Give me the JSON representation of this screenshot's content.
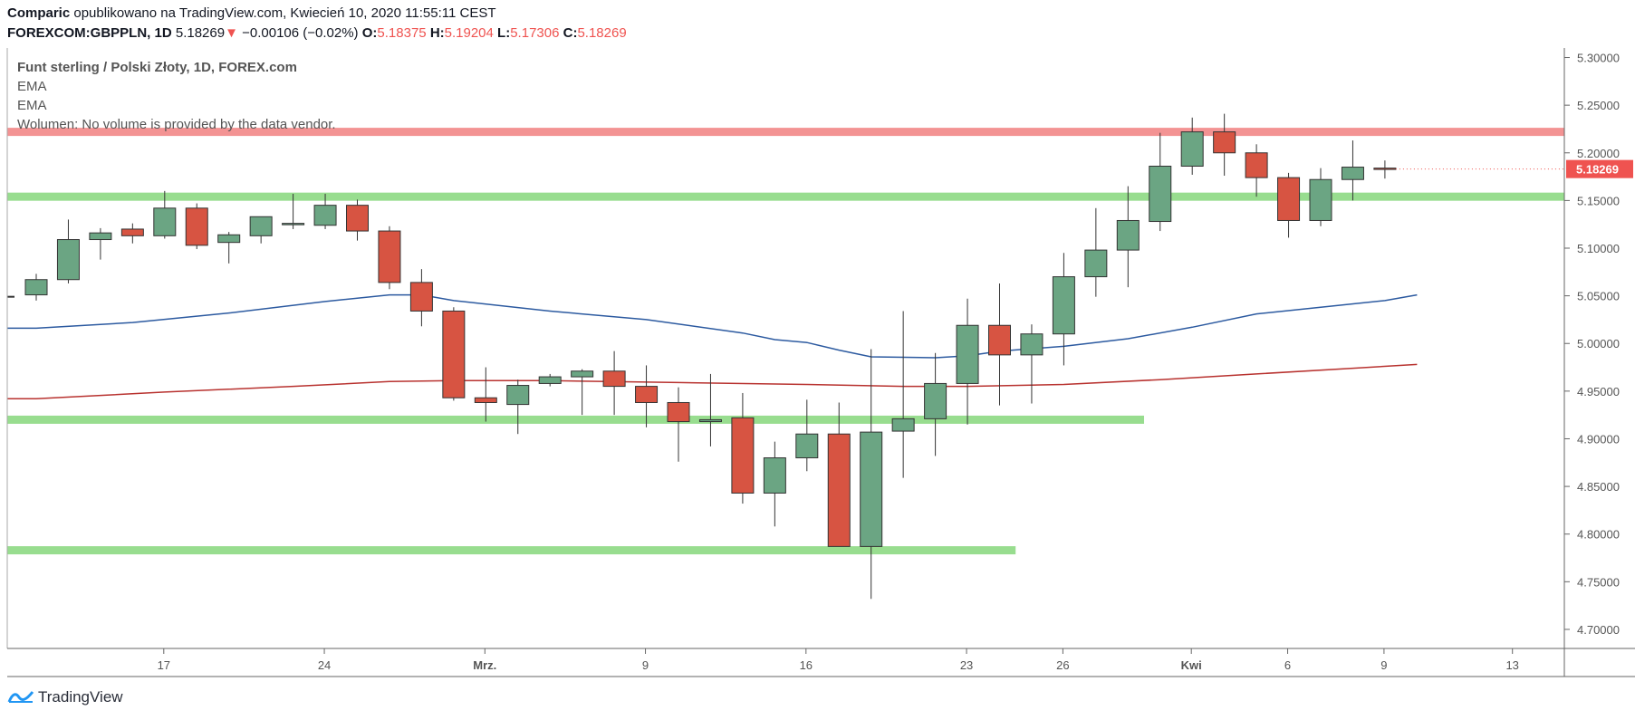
{
  "header": {
    "author": "Comparic",
    "published_text": "opublikowano na TradingView.com, Kwiecień 10, 2020 11:55:11 CEST",
    "symbol": "FOREXCOM:GBPPLN, 1D",
    "last_price": "5.18269",
    "down_arrow": "▼",
    "change": "−0.00106 (−0.02%)",
    "o_label": "O:",
    "o_value": "5.18375",
    "h_label": "H:",
    "h_value": "5.19204",
    "l_label": "L:",
    "l_value": "5.17306",
    "c_label": "C:",
    "c_value": "5.18269"
  },
  "legend": {
    "title": "Funt sterling / Polski Złoty, 1D, FOREX.com",
    "ema1": "EMA",
    "ema2": "EMA",
    "volume": "Wolumen: No volume is provided by the data vendor."
  },
  "footer": {
    "brand": "TradingView",
    "logo_icon": "tradingview-logo-icon"
  },
  "chart_data": {
    "type": "candlestick",
    "ylim": [
      4.68,
      5.31
    ],
    "y_ticks": [
      "5.30000",
      "5.25000",
      "5.20000",
      "5.15000",
      "5.10000",
      "5.05000",
      "5.00000",
      "4.95000",
      "4.90000",
      "4.85000",
      "4.80000",
      "4.75000",
      "4.70000"
    ],
    "x_ticks": [
      {
        "label": "17",
        "index": 4
      },
      {
        "label": "24",
        "index": 9
      },
      {
        "label": "Mrz.",
        "index": 14
      },
      {
        "label": "9",
        "index": 19
      },
      {
        "label": "16",
        "index": 24
      },
      {
        "label": "23",
        "index": 29
      },
      {
        "label": "26",
        "index": 32
      },
      {
        "label": "Kwi",
        "index": 36
      },
      {
        "label": "6",
        "index": 39
      },
      {
        "label": "9",
        "index": 42
      },
      {
        "label": "13",
        "index": 46
      }
    ],
    "last_price_label": "5.18269",
    "colors": {
      "up": "#6ba583",
      "down": "#d75442",
      "ema_fast": "#2c5aa0",
      "ema_slow": "#b8322f",
      "support": "#98dd8f",
      "resistance": "#f39393",
      "price_tag": "#ef5350"
    },
    "candles": [
      {
        "o": 5.051,
        "h": 5.073,
        "l": 5.045,
        "c": 5.067
      },
      {
        "o": 5.067,
        "h": 5.13,
        "l": 5.063,
        "c": 5.109
      },
      {
        "o": 5.109,
        "h": 5.121,
        "l": 5.088,
        "c": 5.116
      },
      {
        "o": 5.12,
        "h": 5.126,
        "l": 5.105,
        "c": 5.113
      },
      {
        "o": 5.113,
        "h": 5.16,
        "l": 5.11,
        "c": 5.142
      },
      {
        "o": 5.142,
        "h": 5.147,
        "l": 5.099,
        "c": 5.103
      },
      {
        "o": 5.106,
        "h": 5.117,
        "l": 5.084,
        "c": 5.114
      },
      {
        "o": 5.113,
        "h": 5.133,
        "l": 5.105,
        "c": 5.133
      },
      {
        "o": 5.126,
        "h": 5.157,
        "l": 5.12,
        "c": 5.126
      },
      {
        "o": 5.124,
        "h": 5.157,
        "l": 5.12,
        "c": 5.145
      },
      {
        "o": 5.145,
        "h": 5.151,
        "l": 5.108,
        "c": 5.118
      },
      {
        "o": 5.118,
        "h": 5.123,
        "l": 5.057,
        "c": 5.064
      },
      {
        "o": 5.064,
        "h": 5.078,
        "l": 5.018,
        "c": 5.034
      },
      {
        "o": 5.034,
        "h": 5.038,
        "l": 4.94,
        "c": 4.943
      },
      {
        "o": 4.943,
        "h": 4.975,
        "l": 4.918,
        "c": 4.938
      },
      {
        "o": 4.936,
        "h": 4.962,
        "l": 4.905,
        "c": 4.956
      },
      {
        "o": 4.958,
        "h": 4.968,
        "l": 4.955,
        "c": 4.965
      },
      {
        "o": 4.965,
        "h": 4.973,
        "l": 4.925,
        "c": 4.971
      },
      {
        "o": 4.971,
        "h": 4.992,
        "l": 4.925,
        "c": 4.955
      },
      {
        "o": 4.955,
        "h": 4.977,
        "l": 4.912,
        "c": 4.938
      },
      {
        "o": 4.938,
        "h": 4.954,
        "l": 4.876,
        "c": 4.918
      },
      {
        "o": 4.918,
        "h": 4.968,
        "l": 4.892,
        "c": 4.92
      },
      {
        "o": 4.922,
        "h": 4.948,
        "l": 4.832,
        "c": 4.843
      },
      {
        "o": 4.843,
        "h": 4.897,
        "l": 4.808,
        "c": 4.88
      },
      {
        "o": 4.88,
        "h": 4.941,
        "l": 4.866,
        "c": 4.905
      },
      {
        "o": 4.905,
        "h": 4.938,
        "l": 4.787,
        "c": 4.787
      },
      {
        "o": 4.787,
        "h": 4.994,
        "l": 4.732,
        "c": 4.907
      },
      {
        "o": 4.908,
        "h": 5.034,
        "l": 4.859,
        "c": 4.921
      },
      {
        "o": 4.921,
        "h": 4.99,
        "l": 4.882,
        "c": 4.958
      },
      {
        "o": 4.958,
        "h": 5.047,
        "l": 4.915,
        "c": 5.019
      },
      {
        "o": 5.019,
        "h": 5.063,
        "l": 4.935,
        "c": 4.988
      },
      {
        "o": 4.988,
        "h": 5.02,
        "l": 4.937,
        "c": 5.01
      },
      {
        "o": 5.01,
        "h": 5.095,
        "l": 4.977,
        "c": 5.07
      },
      {
        "o": 5.07,
        "h": 5.142,
        "l": 5.049,
        "c": 5.098
      },
      {
        "o": 5.098,
        "h": 5.165,
        "l": 5.059,
        "c": 5.129
      },
      {
        "o": 5.128,
        "h": 5.221,
        "l": 5.118,
        "c": 5.186
      },
      {
        "o": 5.186,
        "h": 5.237,
        "l": 5.177,
        "c": 5.222
      },
      {
        "o": 5.222,
        "h": 5.241,
        "l": 5.176,
        "c": 5.2
      },
      {
        "o": 5.2,
        "h": 5.209,
        "l": 5.154,
        "c": 5.174
      },
      {
        "o": 5.174,
        "h": 5.179,
        "l": 5.111,
        "c": 5.129
      },
      {
        "o": 5.129,
        "h": 5.184,
        "l": 5.123,
        "c": 5.172
      },
      {
        "o": 5.172,
        "h": 5.213,
        "l": 5.15,
        "c": 5.185
      },
      {
        "o": 5.184,
        "h": 5.192,
        "l": 5.173,
        "c": 5.183
      }
    ],
    "ema_fast": [
      [
        0,
        5.016
      ],
      [
        3,
        5.022
      ],
      [
        6,
        5.032
      ],
      [
        9,
        5.044
      ],
      [
        11,
        5.051
      ],
      [
        12,
        5.051
      ],
      [
        13,
        5.045
      ],
      [
        16,
        5.034
      ],
      [
        19,
        5.025
      ],
      [
        22,
        5.011
      ],
      [
        23,
        5.004
      ],
      [
        24,
        5.001
      ],
      [
        25,
        4.993
      ],
      [
        26,
        4.986
      ],
      [
        28,
        4.985
      ],
      [
        29,
        4.987
      ],
      [
        30,
        4.992
      ],
      [
        32,
        4.997
      ],
      [
        34,
        5.005
      ],
      [
        36,
        5.017
      ],
      [
        38,
        5.031
      ],
      [
        40,
        5.038
      ],
      [
        42,
        5.045
      ],
      [
        43,
        5.051
      ]
    ],
    "ema_slow": [
      [
        0,
        4.942
      ],
      [
        4,
        4.949
      ],
      [
        8,
        4.955
      ],
      [
        11,
        4.96
      ],
      [
        13,
        4.961
      ],
      [
        16,
        4.961
      ],
      [
        20,
        4.959
      ],
      [
        24,
        4.957
      ],
      [
        27,
        4.955
      ],
      [
        29,
        4.955
      ],
      [
        32,
        4.957
      ],
      [
        35,
        4.962
      ],
      [
        38,
        4.968
      ],
      [
        41,
        4.974
      ],
      [
        43,
        4.978
      ]
    ],
    "levels": [
      {
        "kind": "resistance",
        "price": 5.222,
        "x_start": -1,
        "x_end": null
      },
      {
        "kind": "support",
        "price": 5.154,
        "x_start": -1,
        "x_end": null
      },
      {
        "kind": "support",
        "price": 4.92,
        "x_start": -1,
        "x_end": 34.5
      },
      {
        "kind": "support",
        "price": 4.783,
        "x_start": -1,
        "x_end": 30.5
      }
    ]
  }
}
